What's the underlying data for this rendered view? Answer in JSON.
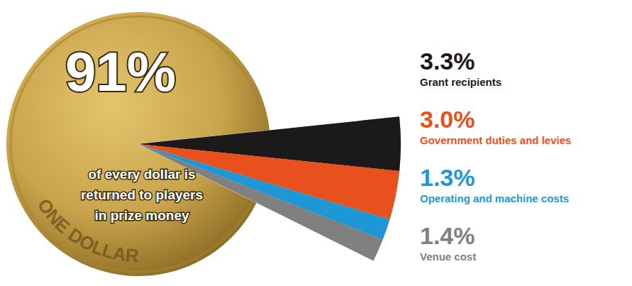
{
  "chart_data": {
    "type": "pie",
    "categories": [
      null,
      "Grant recipients",
      "Government duties and levies",
      "Operating and machine costs",
      "Venue cost"
    ],
    "values": [
      91,
      3.3,
      3.0,
      1.3,
      1.4
    ],
    "value_labels": [
      "91%",
      "3.3%",
      "3.0%",
      "1.3%",
      "1.4%"
    ],
    "colors": [
      "#c9a44c",
      "#1a1a1a",
      "#e8501e",
      "#1e98d5",
      "#808080"
    ],
    "data_labels": true,
    "annotations": [
      "of every dollar is",
      "returned to players",
      "in prize money"
    ],
    "coin_text": "ONE DOLLAR"
  }
}
